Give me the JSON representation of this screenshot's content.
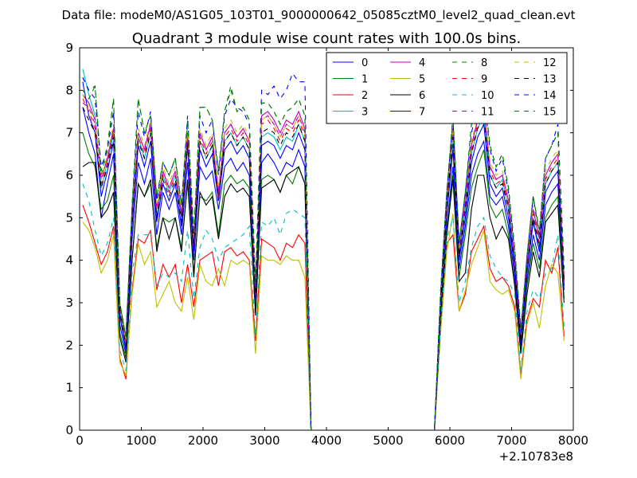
{
  "figure": {
    "suptitle": "Data file: modeM0/AS1G05_103T01_9000000642_05085cztM0_level2_quad_clean.evt"
  },
  "chart_data": {
    "type": "line",
    "title": "Quadrant 3 module wise count rates with 100.0s bins.",
    "xlabel": "",
    "ylabel": "",
    "xlim": [
      0,
      8000
    ],
    "ylim": [
      0,
      9
    ],
    "x_ticks": [
      0,
      1000,
      2000,
      3000,
      4000,
      5000,
      6000,
      7000,
      8000
    ],
    "x_tick_labels": [
      "0",
      "1000",
      "2000",
      "3000",
      "4000",
      "5000",
      "6000",
      "7000",
      "8000"
    ],
    "y_ticks": [
      0,
      1,
      2,
      3,
      4,
      5,
      6,
      7,
      8,
      9
    ],
    "y_tick_labels": [
      "0",
      "1",
      "2",
      "3",
      "4",
      "5",
      "6",
      "7",
      "8",
      "9"
    ],
    "x_offset_label": "+2.10783e8",
    "grid": false,
    "legend_position": "top-right",
    "legend_columns": 4,
    "x": [
      50,
      150,
      250,
      350,
      450,
      550,
      650,
      750,
      850,
      950,
      1050,
      1150,
      1250,
      1350,
      1450,
      1550,
      1650,
      1750,
      1850,
      1950,
      2050,
      2150,
      2250,
      2350,
      2450,
      2550,
      2650,
      2750,
      2850,
      2950,
      3050,
      3150,
      3250,
      3350,
      3450,
      3550,
      3650,
      3750,
      3850,
      5750,
      5850,
      5950,
      6050,
      6150,
      6250,
      6350,
      6450,
      6550,
      6650,
      6750,
      6850,
      6950,
      7050,
      7150,
      7250,
      7350,
      7450,
      7550,
      7650,
      7750,
      7850
    ],
    "series": [
      {
        "name": "0",
        "color": "#0000ff",
        "dash": "solid",
        "values": [
          7.6,
          7.0,
          6.5,
          5.0,
          5.8,
          6.5,
          2.5,
          1.8,
          4.5,
          6.3,
          5.8,
          6.4,
          4.6,
          5.6,
          5.2,
          5.6,
          4.6,
          6.3,
          4.0,
          6.2,
          5.9,
          6.1,
          5.2,
          6.2,
          6.4,
          6.1,
          6.3,
          6.0,
          3.0,
          6.3,
          6.5,
          6.3,
          6.0,
          6.3,
          6.2,
          6.6,
          6.2,
          0,
          0,
          0,
          2.8,
          4.8,
          6.2,
          3.8,
          4.8,
          6.0,
          6.5,
          6.8,
          5.5,
          5.3,
          5.5,
          4.8,
          3.6,
          2.0,
          3.5,
          4.6,
          4.0,
          5.3,
          5.6,
          5.8,
          3.3
        ]
      },
      {
        "name": "1",
        "color": "#008000",
        "dash": "solid",
        "values": [
          7.0,
          6.5,
          6.2,
          5.2,
          5.4,
          6.0,
          2.3,
          1.7,
          4.0,
          5.8,
          5.5,
          5.8,
          4.3,
          5.0,
          4.9,
          5.0,
          4.3,
          5.8,
          3.7,
          5.5,
          5.4,
          5.6,
          4.6,
          5.8,
          6.0,
          5.8,
          5.9,
          5.7,
          2.8,
          5.9,
          6.0,
          5.9,
          5.6,
          6.0,
          5.8,
          6.2,
          5.8,
          0,
          0,
          0,
          2.7,
          4.7,
          6.0,
          3.6,
          4.6,
          5.7,
          6.2,
          6.6,
          5.3,
          5.0,
          5.2,
          4.6,
          3.4,
          1.9,
          3.4,
          4.4,
          3.8,
          5.0,
          5.3,
          5.5,
          3.1
        ]
      },
      {
        "name": "2",
        "color": "#ff0000",
        "dash": "solid",
        "values": [
          5.3,
          4.9,
          4.4,
          3.9,
          4.2,
          4.8,
          1.7,
          1.2,
          3.3,
          4.5,
          4.4,
          4.7,
          3.3,
          3.9,
          3.6,
          3.9,
          3.0,
          3.9,
          2.9,
          4.0,
          4.1,
          4.2,
          3.4,
          4.2,
          4.3,
          4.1,
          4.2,
          4.0,
          2.1,
          4.5,
          4.4,
          4.3,
          4.0,
          4.4,
          4.3,
          4.6,
          4.4,
          0,
          0,
          0,
          2.4,
          4.4,
          4.6,
          2.8,
          3.2,
          4.2,
          4.5,
          4.8,
          3.8,
          3.5,
          3.6,
          3.4,
          2.9,
          1.3,
          2.6,
          3.1,
          2.9,
          4.0,
          3.7,
          4.3,
          2.2
        ]
      },
      {
        "name": "3",
        "color": "#00bfbf",
        "dash": "solid",
        "values": [
          8.5,
          7.9,
          7.4,
          5.7,
          6.3,
          7.0,
          2.8,
          2.0,
          4.9,
          6.9,
          6.4,
          7.0,
          5.0,
          6.0,
          5.6,
          6.0,
          5.0,
          6.9,
          4.3,
          6.8,
          6.4,
          6.7,
          5.5,
          6.8,
          7.0,
          6.7,
          6.9,
          6.6,
          3.2,
          6.9,
          7.0,
          6.9,
          6.6,
          6.9,
          6.8,
          7.2,
          6.8,
          0,
          0,
          0,
          3.0,
          5.2,
          6.8,
          4.1,
          5.2,
          6.5,
          7.1,
          7.4,
          6.0,
          5.7,
          5.9,
          5.2,
          3.9,
          2.1,
          3.8,
          5.0,
          4.3,
          5.8,
          6.1,
          6.3,
          3.5
        ]
      },
      {
        "name": "4",
        "color": "#bf00bf",
        "dash": "solid",
        "values": [
          7.9,
          7.7,
          7.3,
          5.9,
          6.4,
          7.1,
          2.9,
          2.1,
          5.0,
          7.0,
          6.6,
          7.2,
          5.2,
          6.1,
          5.7,
          6.1,
          5.1,
          7.0,
          4.4,
          7.0,
          6.6,
          6.9,
          5.6,
          7.0,
          7.2,
          6.9,
          7.1,
          6.8,
          3.3,
          7.4,
          7.5,
          7.3,
          7.0,
          7.3,
          7.2,
          7.5,
          7.1,
          0,
          0,
          0,
          3.1,
          5.4,
          7.1,
          4.2,
          5.4,
          6.7,
          7.3,
          7.6,
          6.2,
          5.9,
          6.0,
          5.4,
          4.0,
          2.2,
          3.9,
          5.2,
          4.5,
          6.0,
          6.3,
          6.5,
          3.6
        ]
      },
      {
        "name": "5",
        "color": "#bfbf00",
        "dash": "solid",
        "values": [
          4.9,
          4.7,
          4.3,
          3.7,
          4.0,
          4.6,
          1.6,
          1.3,
          3.2,
          4.4,
          3.9,
          4.2,
          2.9,
          3.2,
          3.5,
          3.0,
          2.8,
          3.6,
          2.6,
          3.9,
          3.5,
          3.4,
          3.8,
          3.4,
          4.0,
          3.9,
          4.0,
          3.9,
          1.8,
          4.1,
          4.0,
          4.0,
          3.9,
          4.1,
          4.0,
          4.0,
          3.6,
          0,
          0,
          0,
          2.3,
          4.2,
          5.1,
          2.8,
          3.3,
          3.9,
          4.3,
          4.7,
          3.5,
          3.3,
          3.2,
          3.3,
          2.8,
          1.2,
          2.5,
          3.0,
          2.4,
          3.4,
          3.9,
          3.7,
          2.1
        ]
      },
      {
        "name": "6",
        "color": "#000000",
        "dash": "solid",
        "values": [
          6.2,
          6.3,
          6.3,
          5.0,
          5.2,
          5.6,
          2.2,
          1.6,
          4.0,
          5.8,
          5.5,
          5.9,
          4.2,
          5.0,
          4.5,
          5.0,
          4.2,
          5.9,
          3.6,
          5.6,
          5.3,
          5.5,
          4.5,
          5.5,
          5.8,
          5.6,
          5.7,
          5.5,
          2.7,
          5.7,
          5.8,
          5.9,
          5.6,
          6.0,
          6.1,
          6.2,
          5.8,
          0,
          0,
          0,
          2.6,
          4.6,
          5.9,
          3.5,
          3.7,
          5.2,
          6.0,
          6.0,
          5.0,
          4.5,
          4.8,
          4.5,
          3.4,
          1.8,
          3.2,
          4.2,
          3.6,
          4.9,
          5.1,
          5.3,
          3.0
        ]
      },
      {
        "name": "7",
        "color": "#0000ff",
        "dash": "solid",
        "values": [
          8.2,
          7.4,
          7.0,
          5.5,
          6.1,
          6.8,
          2.7,
          1.9,
          4.8,
          6.7,
          6.2,
          6.8,
          4.9,
          5.8,
          5.4,
          5.8,
          4.8,
          6.7,
          4.2,
          6.6,
          6.2,
          6.5,
          5.4,
          6.6,
          6.8,
          6.5,
          6.7,
          6.4,
          3.1,
          6.7,
          6.8,
          6.7,
          6.4,
          6.7,
          6.6,
          7.0,
          6.6,
          0,
          0,
          0,
          2.9,
          5.1,
          6.6,
          4.0,
          5.0,
          6.3,
          6.9,
          7.2,
          5.8,
          5.5,
          5.7,
          5.0,
          3.8,
          2.0,
          3.7,
          4.9,
          4.2,
          5.6,
          5.9,
          6.1,
          3.4
        ]
      },
      {
        "name": "8",
        "color": "#008000",
        "dash": "dashed",
        "values": [
          8.3,
          8.0,
          8.1,
          6.1,
          6.7,
          7.8,
          3.0,
          2.2,
          5.3,
          7.8,
          7.0,
          7.4,
          5.5,
          6.3,
          6.0,
          6.4,
          5.3,
          7.3,
          4.6,
          7.6,
          7.6,
          7.3,
          6.1,
          7.5,
          8.0,
          7.5,
          7.6,
          7.3,
          3.5,
          7.7,
          7.7,
          7.5,
          7.2,
          7.5,
          7.6,
          7.8,
          7.4,
          0,
          0,
          0,
          3.3,
          5.6,
          7.4,
          4.4,
          5.6,
          7.2,
          7.5,
          8.0,
          6.7,
          6.2,
          6.5,
          5.7,
          4.3,
          2.4,
          4.1,
          5.5,
          4.7,
          6.4,
          6.7,
          7.0,
          3.8
        ]
      },
      {
        "name": "9",
        "color": "#ff0000",
        "dash": "dashed",
        "values": [
          7.8,
          7.5,
          7.1,
          5.8,
          6.3,
          7.0,
          2.8,
          2.0,
          4.9,
          6.9,
          6.5,
          7.1,
          5.1,
          6.0,
          5.6,
          6.0,
          5.0,
          6.9,
          4.3,
          6.9,
          6.5,
          6.8,
          5.5,
          6.9,
          7.1,
          6.8,
          7.0,
          6.7,
          3.2,
          7.2,
          7.3,
          7.1,
          6.8,
          7.1,
          7.0,
          7.3,
          6.9,
          0,
          0,
          0,
          3.0,
          5.3,
          7.0,
          4.1,
          5.3,
          6.6,
          7.2,
          7.5,
          6.1,
          5.8,
          5.9,
          5.3,
          3.9,
          2.1,
          3.8,
          5.1,
          4.4,
          5.9,
          6.2,
          6.4,
          3.5
        ]
      },
      {
        "name": "10",
        "color": "#00bfbf",
        "dash": "dashed",
        "values": [
          5.8,
          5.4,
          4.7,
          4.1,
          4.4,
          5.0,
          1.9,
          1.4,
          3.7,
          4.6,
          4.6,
          4.6,
          3.4,
          3.7,
          3.6,
          3.7,
          3.5,
          4.7,
          3.1,
          4.3,
          4.7,
          4.5,
          4.0,
          4.3,
          4.4,
          4.5,
          4.6,
          4.8,
          2.2,
          4.9,
          4.8,
          5.0,
          4.6,
          5.1,
          5.2,
          5.1,
          5.0,
          0,
          0,
          0,
          2.5,
          4.5,
          5.0,
          3.0,
          3.5,
          4.3,
          4.8,
          5.0,
          4.1,
          3.8,
          3.6,
          3.5,
          3.2,
          1.4,
          2.8,
          3.3,
          3.1,
          3.7,
          3.8,
          4.6,
          2.4
        ]
      },
      {
        "name": "11",
        "color": "#bf00bf",
        "dash": "dashed",
        "values": [
          7.7,
          7.6,
          7.2,
          5.9,
          6.4,
          7.1,
          2.9,
          2.1,
          5.0,
          7.0,
          6.6,
          7.2,
          5.2,
          6.1,
          5.7,
          6.1,
          5.1,
          7.0,
          4.4,
          7.0,
          6.6,
          6.9,
          5.6,
          7.0,
          7.2,
          6.9,
          7.1,
          6.8,
          3.3,
          7.3,
          7.4,
          7.2,
          6.9,
          7.2,
          7.1,
          7.4,
          7.0,
          0,
          0,
          0,
          3.1,
          5.4,
          7.0,
          4.2,
          5.4,
          6.7,
          7.3,
          7.6,
          6.2,
          5.9,
          6.0,
          5.4,
          4.0,
          2.2,
          3.9,
          5.2,
          4.5,
          6.0,
          6.3,
          6.5,
          3.6
        ]
      },
      {
        "name": "12",
        "color": "#bfbf00",
        "dash": "dashed",
        "values": [
          7.9,
          7.6,
          7.3,
          5.9,
          6.5,
          7.2,
          2.9,
          2.1,
          5.1,
          7.1,
          6.7,
          7.3,
          5.2,
          6.2,
          5.8,
          6.2,
          5.2,
          7.1,
          4.5,
          7.1,
          6.7,
          7.0,
          5.7,
          7.1,
          7.3,
          7.0,
          7.2,
          6.9,
          3.3,
          7.3,
          7.4,
          7.2,
          6.9,
          7.2,
          7.1,
          7.4,
          7.0,
          0,
          0,
          0,
          3.1,
          5.5,
          7.1,
          4.3,
          5.5,
          6.8,
          7.4,
          7.7,
          6.3,
          6.0,
          6.1,
          5.5,
          4.1,
          2.2,
          4.0,
          5.3,
          4.6,
          6.1,
          6.4,
          6.6,
          3.7
        ]
      },
      {
        "name": "13",
        "color": "#000000",
        "dash": "dashed",
        "values": [
          7.6,
          7.3,
          7.0,
          5.7,
          6.2,
          6.9,
          2.8,
          2.0,
          4.9,
          6.8,
          6.4,
          7.0,
          5.0,
          5.9,
          5.5,
          5.9,
          4.9,
          6.8,
          4.3,
          6.8,
          6.4,
          6.7,
          5.4,
          6.8,
          7.0,
          6.7,
          6.9,
          6.6,
          3.2,
          7.0,
          7.1,
          7.0,
          6.7,
          7.0,
          6.9,
          7.2,
          6.8,
          0,
          0,
          0,
          3.0,
          5.2,
          6.9,
          4.1,
          5.2,
          6.5,
          7.1,
          7.4,
          6.0,
          5.7,
          5.8,
          5.2,
          3.9,
          2.1,
          3.8,
          5.0,
          4.3,
          5.8,
          6.1,
          6.3,
          3.5
        ]
      },
      {
        "name": "14",
        "color": "#0000ff",
        "dash": "dashed",
        "values": [
          8.3,
          8.0,
          7.8,
          6.2,
          6.6,
          7.5,
          3.0,
          2.2,
          5.2,
          7.5,
          6.9,
          7.5,
          5.4,
          6.3,
          6.0,
          6.4,
          5.3,
          7.4,
          4.6,
          7.4,
          7.0,
          7.3,
          6.0,
          7.4,
          7.8,
          7.6,
          7.5,
          7.2,
          3.4,
          8.0,
          7.9,
          8.1,
          7.8,
          8.0,
          8.4,
          8.2,
          8.2,
          0,
          0,
          0,
          3.2,
          5.6,
          7.3,
          4.4,
          5.6,
          7.0,
          7.6,
          7.9,
          6.6,
          6.1,
          6.4,
          5.6,
          4.2,
          2.3,
          4.1,
          5.5,
          4.6,
          6.4,
          6.7,
          7.2,
          3.8
        ]
      },
      {
        "name": "15",
        "color": "#008000",
        "dash": "dashed",
        "values": [
          8.0,
          7.8,
          8.1,
          6.0,
          6.6,
          7.8,
          3.0,
          2.2,
          5.3,
          7.8,
          7.0,
          7.4,
          5.5,
          6.3,
          6.0,
          6.4,
          5.3,
          7.3,
          4.6,
          7.6,
          7.6,
          7.3,
          6.1,
          7.5,
          8.1,
          7.5,
          7.6,
          7.3,
          3.5,
          7.7,
          7.7,
          7.5,
          7.2,
          7.5,
          7.6,
          7.8,
          7.4,
          0,
          0,
          0,
          3.3,
          5.6,
          7.4,
          4.4,
          5.6,
          7.2,
          7.5,
          8.0,
          6.7,
          6.2,
          6.5,
          5.7,
          4.3,
          2.4,
          4.1,
          5.5,
          4.7,
          6.4,
          6.7,
          7.0,
          3.8
        ]
      }
    ]
  }
}
